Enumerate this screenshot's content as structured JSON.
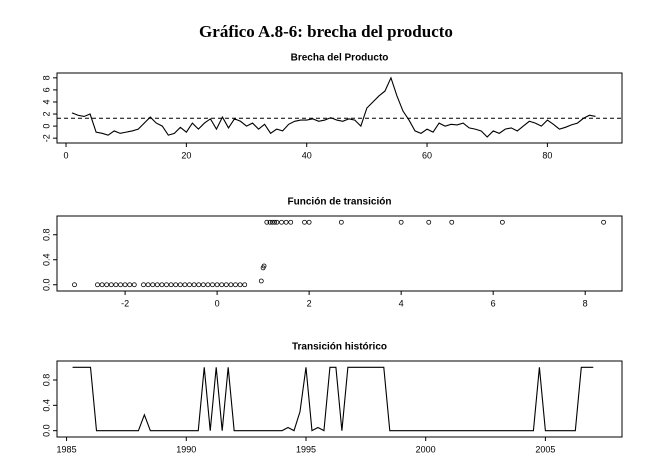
{
  "title": "Gráfico A.8-6: brecha del producto",
  "chart_data": [
    {
      "type": "line",
      "title": "Brecha del Producto",
      "color": "#000000",
      "x": [
        1,
        2,
        3,
        4,
        5,
        6,
        7,
        8,
        9,
        10,
        11,
        12,
        13,
        14,
        15,
        16,
        17,
        18,
        19,
        20,
        21,
        22,
        23,
        24,
        25,
        26,
        27,
        28,
        29,
        30,
        31,
        32,
        33,
        34,
        35,
        36,
        37,
        38,
        39,
        40,
        41,
        42,
        43,
        44,
        45,
        46,
        47,
        48,
        49,
        50,
        51,
        52,
        53,
        54,
        55,
        56,
        57,
        58,
        59,
        60,
        61,
        62,
        63,
        64,
        65,
        66,
        67,
        68,
        69,
        70,
        71,
        72,
        73,
        74,
        75,
        76,
        77,
        78,
        79,
        80,
        81,
        82,
        83,
        84,
        85,
        86,
        87,
        88
      ],
      "values": [
        2.2,
        1.8,
        1.6,
        2.0,
        -1.0,
        -1.2,
        -1.5,
        -0.8,
        -1.2,
        -1.0,
        -0.8,
        -0.5,
        0.5,
        1.5,
        0.5,
        0.0,
        -1.5,
        -1.2,
        -0.2,
        -1.0,
        0.5,
        -0.5,
        0.5,
        1.2,
        -0.5,
        1.5,
        -0.3,
        1.2,
        0.8,
        0.0,
        0.5,
        -0.5,
        0.3,
        -1.2,
        -0.5,
        -0.8,
        0.3,
        0.8,
        1.0,
        1.0,
        1.2,
        0.8,
        1.0,
        1.4,
        1.0,
        0.8,
        1.2,
        1.0,
        0.0,
        3.0,
        4.0,
        5.0,
        5.8,
        8.0,
        5.0,
        2.5,
        1.0,
        -0.8,
        -1.2,
        -0.5,
        -1.0,
        0.5,
        0.0,
        0.3,
        0.2,
        0.5,
        -0.3,
        -0.5,
        -0.8,
        -1.8,
        -0.8,
        -1.2,
        -0.5,
        -0.3,
        -0.8,
        0.0,
        0.8,
        0.5,
        0.0,
        1.0,
        0.3,
        -0.5,
        -0.2,
        0.2,
        0.5,
        1.3,
        1.8,
        1.6
      ],
      "reference_line": 1.3,
      "xlim": [
        -1.5,
        92.4
      ],
      "xticks": [
        0,
        20,
        40,
        60,
        80
      ],
      "ylim": [
        -2.8,
        8.8
      ],
      "yticks": [
        -2,
        0,
        2,
        4,
        6,
        8
      ]
    },
    {
      "type": "scatter",
      "title": "Función de transición",
      "color": "#000000",
      "x": [
        -3.1,
        -2.6,
        -2.5,
        -2.4,
        -2.3,
        -2.2,
        -2.1,
        -2.0,
        -1.9,
        -1.8,
        -1.6,
        -1.5,
        -1.4,
        -1.3,
        -1.2,
        -1.1,
        -1.0,
        -0.9,
        -0.8,
        -0.7,
        -0.6,
        -0.5,
        -0.4,
        -0.3,
        -0.2,
        -0.1,
        0.0,
        0.1,
        0.2,
        0.3,
        0.4,
        0.5,
        0.6,
        0.96,
        1.0,
        1.02,
        1.08,
        1.15,
        1.2,
        1.25,
        1.3,
        1.4,
        1.5,
        1.6,
        1.9,
        2.0,
        2.7,
        4.0,
        4.6,
        5.1,
        6.2,
        8.4
      ],
      "values": [
        0,
        0,
        0,
        0,
        0,
        0,
        0,
        0,
        0,
        0,
        0,
        0,
        0,
        0,
        0,
        0,
        0,
        0,
        0,
        0,
        0,
        0,
        0,
        0,
        0,
        0,
        0,
        0,
        0,
        0,
        0,
        0,
        0,
        0.06,
        0.27,
        0.3,
        1,
        1,
        1,
        1,
        1,
        1,
        1,
        1,
        1,
        1,
        1,
        1,
        1,
        1,
        1,
        1
      ],
      "xlim": [
        -3.48,
        8.8
      ],
      "xticks": [
        -2,
        0,
        2,
        4,
        6,
        8
      ],
      "ylim": [
        -0.1,
        1.1
      ],
      "yticks": [
        {
          "value": 0,
          "label": "0.0"
        },
        {
          "value": 0.4,
          "label": "0.4"
        },
        {
          "value": 0.8,
          "label": "0.8"
        }
      ]
    },
    {
      "type": "line",
      "title": "Transición histórico",
      "color": "#000000",
      "x": [
        1985.25,
        1985.5,
        1985.75,
        1986,
        1986.25,
        1986.5,
        1986.75,
        1987,
        1987.25,
        1987.5,
        1987.75,
        1988,
        1988.25,
        1988.5,
        1988.75,
        1989,
        1989.25,
        1989.5,
        1989.75,
        1990,
        1990.25,
        1990.5,
        1990.75,
        1991,
        1991.25,
        1991.5,
        1991.75,
        1992,
        1992.25,
        1992.5,
        1992.75,
        1993,
        1993.25,
        1993.5,
        1993.75,
        1994,
        1994.25,
        1994.5,
        1994.75,
        1995,
        1995.25,
        1995.5,
        1995.75,
        1996,
        1996.25,
        1996.5,
        1996.75,
        1997,
        1997.25,
        1997.5,
        1997.75,
        1998,
        1998.25,
        1998.5,
        1998.75,
        1999,
        1999.25,
        1999.5,
        1999.75,
        2000,
        2000.25,
        2000.5,
        2000.75,
        2001,
        2001.25,
        2001.5,
        2001.75,
        2002,
        2002.25,
        2002.5,
        2002.75,
        2003,
        2003.25,
        2003.5,
        2003.75,
        2004,
        2004.25,
        2004.5,
        2004.75,
        2005,
        2005.25,
        2005.5,
        2005.75,
        2006,
        2006.25,
        2006.5,
        2006.75,
        2007
      ],
      "values": [
        1,
        1,
        1,
        1,
        0,
        0,
        0,
        0,
        0,
        0,
        0,
        0,
        0.25,
        0,
        0,
        0,
        0,
        0,
        0,
        0,
        0,
        0,
        1,
        0,
        1,
        0,
        1,
        0,
        0,
        0,
        0,
        0,
        0,
        0,
        0,
        0,
        0.05,
        0,
        0.3,
        1,
        0,
        0.05,
        0,
        1,
        1,
        0,
        1,
        1,
        1,
        1,
        1,
        1,
        1,
        0,
        0,
        0,
        0,
        0,
        0,
        0,
        0,
        0,
        0,
        0,
        0,
        0,
        0,
        0,
        0,
        0,
        0,
        0,
        0,
        0,
        0,
        0,
        0,
        0,
        1,
        0,
        0,
        0,
        0,
        0,
        0,
        1,
        1,
        1
      ],
      "xlim": [
        1984.6,
        2008.2
      ],
      "xticks": [
        1985,
        1990,
        1995,
        2000,
        2005
      ],
      "ylim": [
        -0.1,
        1.1
      ],
      "yticks": [
        {
          "value": 0,
          "label": "0.0"
        },
        {
          "value": 0.4,
          "label": "0.4"
        },
        {
          "value": 0.8,
          "label": "0.8"
        }
      ]
    }
  ]
}
